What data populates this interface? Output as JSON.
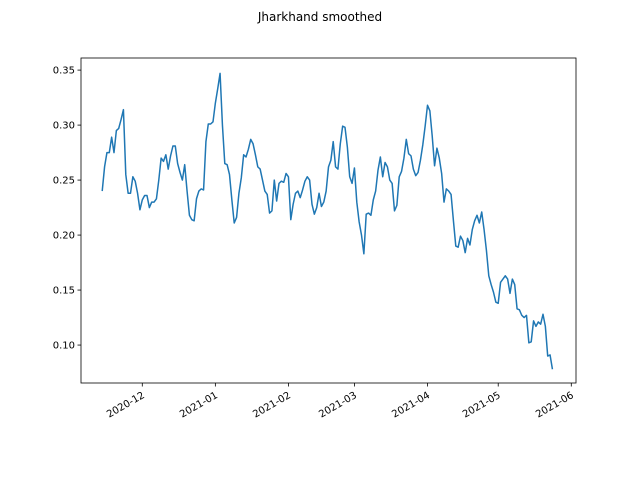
{
  "chart_data": {
    "type": "line",
    "title": "Jharkhand smoothed",
    "x": [
      "2020-11-14",
      "2020-11-15",
      "2020-11-16",
      "2020-11-17",
      "2020-11-18",
      "2020-11-19",
      "2020-11-20",
      "2020-11-21",
      "2020-11-22",
      "2020-11-23",
      "2020-11-24",
      "2020-11-25",
      "2020-11-26",
      "2020-11-27",
      "2020-11-28",
      "2020-11-29",
      "2020-11-30",
      "2020-12-01",
      "2020-12-02",
      "2020-12-03",
      "2020-12-04",
      "2020-12-05",
      "2020-12-06",
      "2020-12-07",
      "2020-12-08",
      "2020-12-09",
      "2020-12-10",
      "2020-12-11",
      "2020-12-12",
      "2020-12-13",
      "2020-12-14",
      "2020-12-15",
      "2020-12-16",
      "2020-12-17",
      "2020-12-18",
      "2020-12-19",
      "2020-12-20",
      "2020-12-21",
      "2020-12-22",
      "2020-12-23",
      "2020-12-24",
      "2020-12-25",
      "2020-12-26",
      "2020-12-27",
      "2020-12-28",
      "2020-12-29",
      "2020-12-30",
      "2020-12-31",
      "2021-01-01",
      "2021-01-02",
      "2021-01-03",
      "2021-01-04",
      "2021-01-05",
      "2021-01-06",
      "2021-01-07",
      "2021-01-08",
      "2021-01-09",
      "2021-01-10",
      "2021-01-11",
      "2021-01-12",
      "2021-01-13",
      "2021-01-14",
      "2021-01-15",
      "2021-01-16",
      "2021-01-17",
      "2021-01-18",
      "2021-01-19",
      "2021-01-20",
      "2021-01-21",
      "2021-01-22",
      "2021-01-23",
      "2021-01-24",
      "2021-01-25",
      "2021-01-26",
      "2021-01-27",
      "2021-01-28",
      "2021-01-29",
      "2021-01-30",
      "2021-01-31",
      "2021-02-01",
      "2021-02-02",
      "2021-02-03",
      "2021-02-04",
      "2021-02-05",
      "2021-02-06",
      "2021-02-07",
      "2021-02-08",
      "2021-02-09",
      "2021-02-10",
      "2021-02-11",
      "2021-02-12",
      "2021-02-13",
      "2021-02-14",
      "2021-02-15",
      "2021-02-16",
      "2021-02-17",
      "2021-02-18",
      "2021-02-19",
      "2021-02-20",
      "2021-02-21",
      "2021-02-22",
      "2021-02-23",
      "2021-02-24",
      "2021-02-25",
      "2021-02-26",
      "2021-02-27",
      "2021-02-28",
      "2021-03-01",
      "2021-03-02",
      "2021-03-03",
      "2021-03-04",
      "2021-03-05",
      "2021-03-06",
      "2021-03-07",
      "2021-03-08",
      "2021-03-09",
      "2021-03-10",
      "2021-03-11",
      "2021-03-12",
      "2021-03-13",
      "2021-03-14",
      "2021-03-15",
      "2021-03-16",
      "2021-03-17",
      "2021-03-18",
      "2021-03-19",
      "2021-03-20",
      "2021-03-21",
      "2021-03-22",
      "2021-03-23",
      "2021-03-24",
      "2021-03-25",
      "2021-03-26",
      "2021-03-27",
      "2021-03-28",
      "2021-03-29",
      "2021-03-30",
      "2021-03-31",
      "2021-04-01",
      "2021-04-02",
      "2021-04-03",
      "2021-04-04",
      "2021-04-05",
      "2021-04-06",
      "2021-04-07",
      "2021-04-08",
      "2021-04-09",
      "2021-04-10",
      "2021-04-11",
      "2021-04-12",
      "2021-04-13",
      "2021-04-14",
      "2021-04-15",
      "2021-04-16",
      "2021-04-17",
      "2021-04-18",
      "2021-04-19",
      "2021-04-20",
      "2021-04-21",
      "2021-04-22",
      "2021-04-23",
      "2021-04-24",
      "2021-04-25",
      "2021-04-26",
      "2021-04-27",
      "2021-04-28",
      "2021-04-29",
      "2021-04-30",
      "2021-05-01",
      "2021-05-02",
      "2021-05-03",
      "2021-05-04",
      "2021-05-05",
      "2021-05-06",
      "2021-05-07",
      "2021-05-08",
      "2021-05-09",
      "2021-05-10",
      "2021-05-11",
      "2021-05-12",
      "2021-05-13",
      "2021-05-14",
      "2021-05-15",
      "2021-05-16",
      "2021-05-17",
      "2021-05-18",
      "2021-05-19",
      "2021-05-20",
      "2021-05-21",
      "2021-05-22",
      "2021-05-23",
      "2021-05-24"
    ],
    "series": [
      {
        "color": "#1f77b4",
        "values": [
          0.24,
          0.262,
          0.275,
          0.275,
          0.289,
          0.275,
          0.295,
          0.297,
          0.305,
          0.314,
          0.255,
          0.238,
          0.238,
          0.253,
          0.249,
          0.238,
          0.223,
          0.232,
          0.236,
          0.236,
          0.225,
          0.23,
          0.23,
          0.233,
          0.25,
          0.27,
          0.267,
          0.273,
          0.26,
          0.272,
          0.281,
          0.281,
          0.265,
          0.257,
          0.25,
          0.264,
          0.24,
          0.218,
          0.214,
          0.213,
          0.233,
          0.24,
          0.242,
          0.241,
          0.285,
          0.301,
          0.301,
          0.303,
          0.32,
          0.333,
          0.347,
          0.3,
          0.265,
          0.264,
          0.255,
          0.232,
          0.211,
          0.216,
          0.238,
          0.252,
          0.273,
          0.271,
          0.278,
          0.287,
          0.283,
          0.273,
          0.262,
          0.26,
          0.25,
          0.24,
          0.237,
          0.22,
          0.222,
          0.25,
          0.231,
          0.247,
          0.249,
          0.248,
          0.256,
          0.253,
          0.214,
          0.228,
          0.238,
          0.24,
          0.234,
          0.241,
          0.249,
          0.253,
          0.25,
          0.228,
          0.219,
          0.225,
          0.238,
          0.226,
          0.23,
          0.24,
          0.262,
          0.268,
          0.285,
          0.262,
          0.26,
          0.283,
          0.299,
          0.298,
          0.28,
          0.253,
          0.247,
          0.261,
          0.23,
          0.212,
          0.2,
          0.183,
          0.219,
          0.22,
          0.218,
          0.232,
          0.24,
          0.259,
          0.271,
          0.253,
          0.266,
          0.262,
          0.25,
          0.247,
          0.222,
          0.227,
          0.253,
          0.258,
          0.27,
          0.287,
          0.274,
          0.272,
          0.26,
          0.254,
          0.257,
          0.268,
          0.282,
          0.299,
          0.318,
          0.313,
          0.29,
          0.263,
          0.279,
          0.27,
          0.256,
          0.23,
          0.242,
          0.24,
          0.237,
          0.213,
          0.19,
          0.189,
          0.199,
          0.195,
          0.184,
          0.197,
          0.191,
          0.205,
          0.213,
          0.218,
          0.211,
          0.221,
          0.205,
          0.186,
          0.163,
          0.155,
          0.148,
          0.139,
          0.138,
          0.157,
          0.16,
          0.163,
          0.16,
          0.147,
          0.16,
          0.155,
          0.133,
          0.132,
          0.127,
          0.125,
          0.127,
          0.102,
          0.103,
          0.122,
          0.117,
          0.121,
          0.119,
          0.128,
          0.117,
          0.09,
          0.091,
          0.078
        ]
      }
    ],
    "xlim": [
      "2020-11-05",
      "2021-06-03"
    ],
    "xticks": [
      "2020-12",
      "2021-01",
      "2021-02",
      "2021-03",
      "2021-04",
      "2021-05",
      "2021-06"
    ],
    "ylim": [
      0.0655,
      0.361
    ],
    "yticks": [
      {
        "value": 0.1,
        "label": "0.10"
      },
      0.15,
      {
        "value": 0.2,
        "label": "0.20"
      },
      0.25,
      {
        "value": 0.3,
        "label": "0.30"
      },
      0.35
    ],
    "grid": false
  }
}
